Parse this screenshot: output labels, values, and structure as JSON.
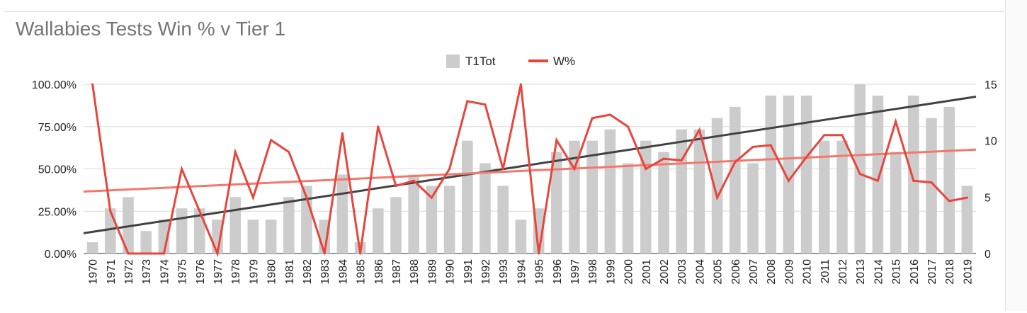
{
  "chart_data": {
    "type": "bar",
    "title": "Wallabies Tests Win % v Tier 1",
    "categories": [
      "1970",
      "1971",
      "1972",
      "1973",
      "1974",
      "1975",
      "1976",
      "1977",
      "1978",
      "1979",
      "1980",
      "1981",
      "1982",
      "1983",
      "1984",
      "1985",
      "1986",
      "1987",
      "1988",
      "1989",
      "1990",
      "1991",
      "1992",
      "1993",
      "1994",
      "1995",
      "1996",
      "1997",
      "1998",
      "1999",
      "2000",
      "2001",
      "2002",
      "2003",
      "2004",
      "2005",
      "2006",
      "2007",
      "2008",
      "2009",
      "2010",
      "2011",
      "2012",
      "2013",
      "2014",
      "2015",
      "2016",
      "2017",
      "2018",
      "2019"
    ],
    "series": [
      {
        "name": "T1Tot",
        "type": "bar",
        "axis": "right",
        "color": "#cccccc",
        "values": [
          1,
          4,
          5,
          2,
          3,
          4,
          4,
          3,
          5,
          3,
          3,
          5,
          6,
          3,
          7,
          1,
          4,
          5,
          7,
          6,
          6,
          10,
          8,
          6,
          3,
          4,
          9,
          10,
          10,
          11,
          8,
          10,
          9,
          11,
          11,
          12,
          13,
          8,
          14,
          14,
          14,
          10,
          10,
          15,
          14,
          9,
          14,
          12,
          13,
          6
        ]
      },
      {
        "name": "W%",
        "type": "line",
        "axis": "left",
        "color": "#e8453c",
        "values": [
          100,
          25,
          0,
          0,
          0,
          50,
          25,
          0,
          60,
          33,
          67,
          60,
          33,
          0,
          71,
          0,
          75,
          40,
          43,
          33,
          50,
          90,
          88,
          50,
          100,
          0,
          67,
          50,
          80,
          82,
          75,
          50,
          56,
          55,
          73,
          33,
          54,
          63,
          64,
          43,
          57,
          70,
          70,
          47,
          43,
          78,
          43,
          42,
          31,
          33
        ]
      }
    ],
    "trendlines": [
      {
        "of": "T1Tot",
        "axis": "right",
        "color": "#424242",
        "start": 1.8,
        "end": 13.9
      },
      {
        "of": "W%",
        "axis": "left",
        "color": "#f4776e",
        "start": 36.6,
        "end": 61.4
      }
    ],
    "y_left": {
      "min": 0,
      "max": 100,
      "ticks": [
        "0.00%",
        "25.00%",
        "50.00%",
        "75.00%",
        "100.00%"
      ]
    },
    "y_right": {
      "min": 0,
      "max": 15,
      "ticks": [
        "0",
        "5",
        "10",
        "15"
      ]
    },
    "legend_position": "top",
    "grid": true
  }
}
